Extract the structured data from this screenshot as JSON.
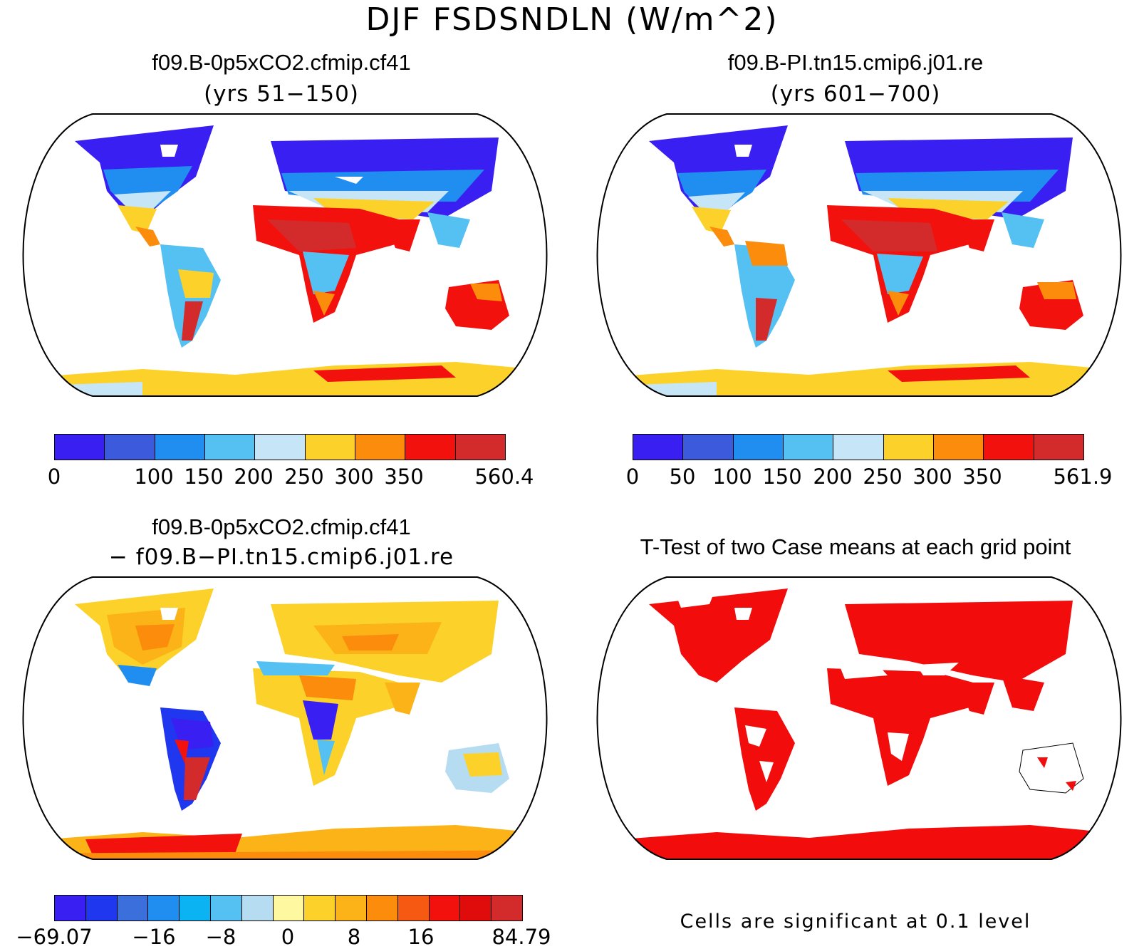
{
  "title": "DJF FSDSNDLN (W/m^2)",
  "panels": {
    "top_left": {
      "case": "f09.B-0p5xCO2.cfmip.cf41",
      "years": "(yrs 51−150)",
      "colorbar": {
        "colors": [
          "#3a1ff2",
          "#3b5bdc",
          "#1f8ef0",
          "#55c0f2",
          "#c6e6f7",
          "#fcd22a",
          "#fb8c0c",
          "#f3110e",
          "#d32b2b"
        ],
        "labels": [
          "0",
          "100",
          "150",
          "200",
          "250",
          "300",
          "350",
          "560.4"
        ]
      }
    },
    "top_right": {
      "case": "f09.B-PI.tn15.cmip6.j01.re",
      "years": "(yrs 601−700)",
      "colorbar": {
        "colors": [
          "#3a1ff2",
          "#3b5bdc",
          "#1f8ef0",
          "#55c0f2",
          "#c6e6f7",
          "#fcd22a",
          "#fb8c0c",
          "#f3110e",
          "#d32b2b"
        ],
        "labels": [
          "0",
          "50",
          "100",
          "150",
          "200",
          "250",
          "300",
          "350",
          "561.9"
        ]
      }
    },
    "bottom_left": {
      "case": "f09.B-0p5xCO2.cfmip.cf41",
      "case2": "− f09.B−PI.tn15.cmip6.j01.re",
      "colorbar": {
        "colors": [
          "#3a1ff2",
          "#1f37ee",
          "#3b6fdc",
          "#1f8ef0",
          "#0bb3f3",
          "#55c0f2",
          "#b6dcf2",
          "#fef8a0",
          "#fcd22a",
          "#fbb318",
          "#fb8c0c",
          "#f65a12",
          "#f3110e",
          "#e00b0b",
          "#d32b2b"
        ],
        "labels": [
          "−69.07",
          "−16",
          "−8",
          "0",
          "8",
          "16",
          "84.79"
        ]
      }
    },
    "bottom_right": {
      "title": "T-Test of two Case means at each grid point",
      "note": "Cells are significant at 0.1 level",
      "significant_color": "#f20c0c"
    }
  }
}
